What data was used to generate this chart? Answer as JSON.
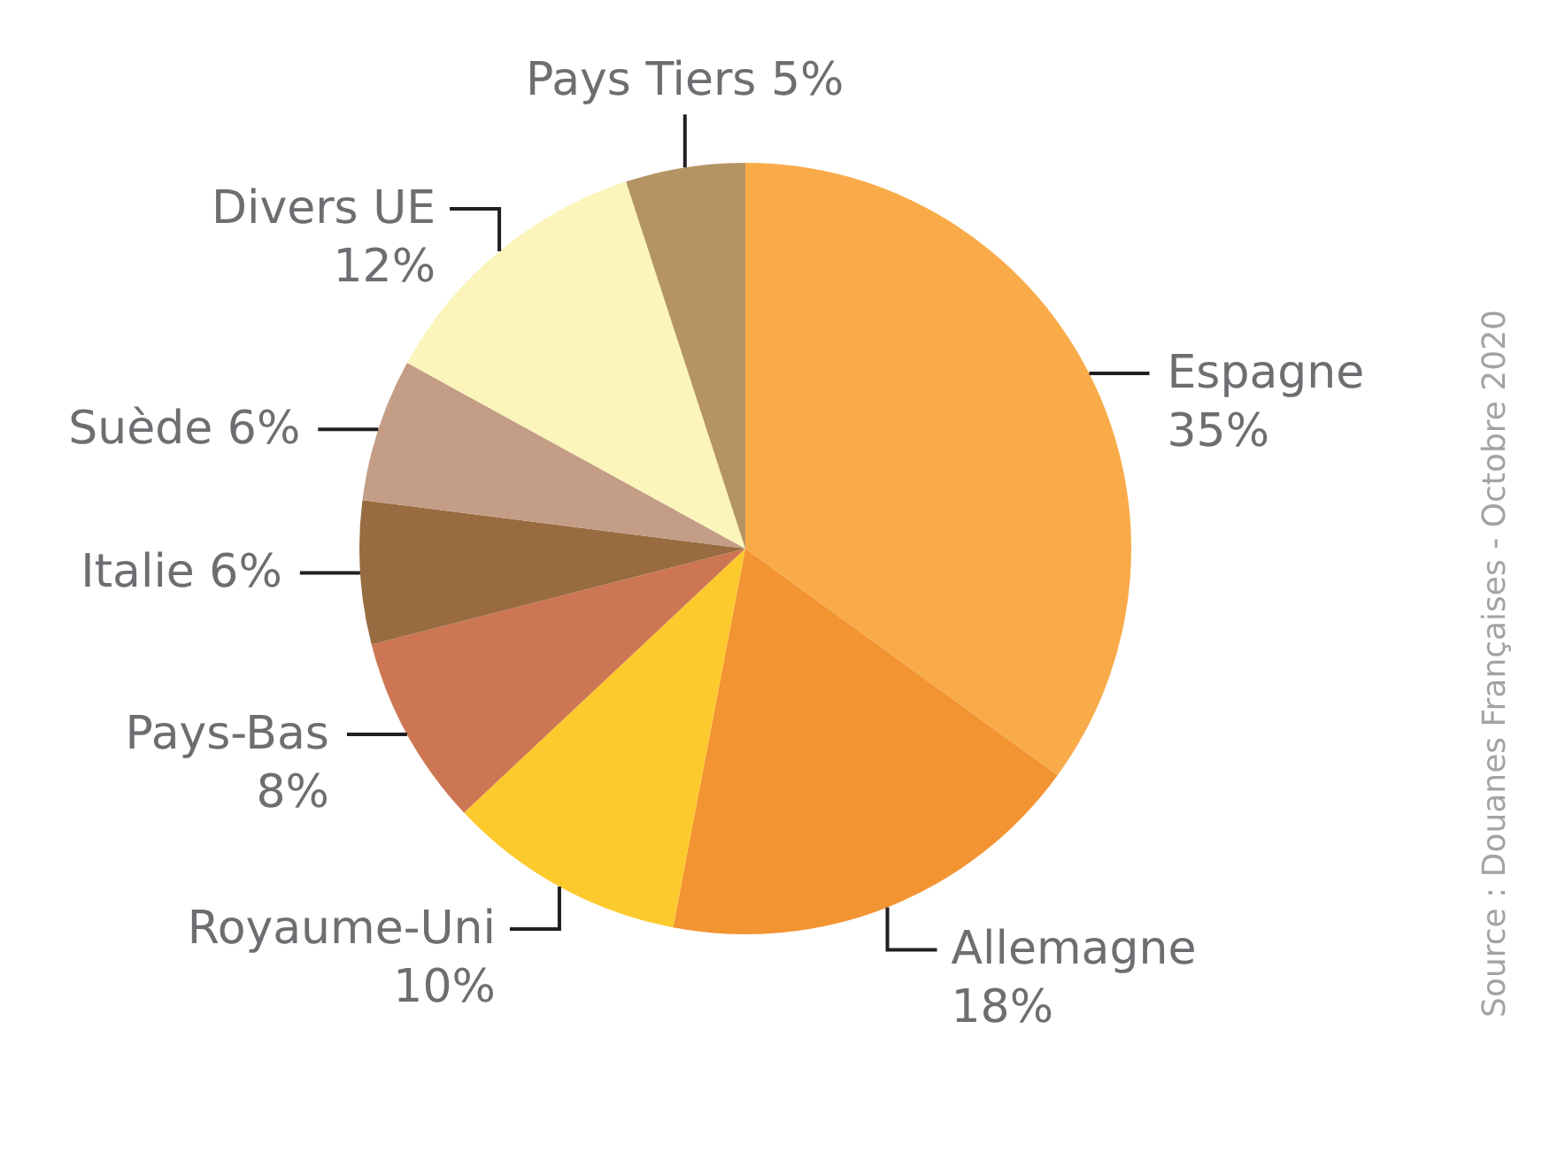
{
  "chart_data": {
    "type": "pie",
    "categories": [
      "Espagne",
      "Allemagne",
      "Royaume-Uni",
      "Pays-Bas",
      "Italie",
      "Suède",
      "Divers UE",
      "Pays Tiers"
    ],
    "values": [
      35,
      18,
      10,
      8,
      6,
      6,
      12,
      5
    ],
    "colors": [
      "#f9ab4a",
      "#f39433",
      "#fdca2e",
      "#cd7653",
      "#986b40",
      "#c39d85",
      "#fbf4bb",
      "#b49462"
    ],
    "value_labels": [
      "35%",
      "18%",
      "10%",
      "8%",
      "6%",
      "6%",
      "12%",
      "5%"
    ],
    "annotations": [
      "Source : Douanes Françaises - Octobre 2020"
    ]
  }
}
